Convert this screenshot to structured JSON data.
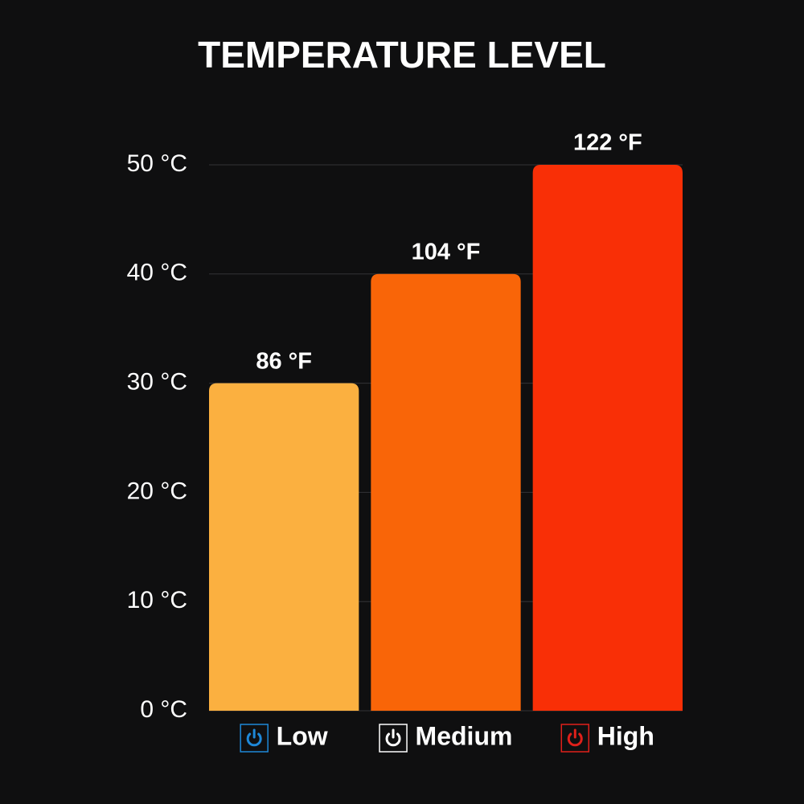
{
  "chart_data": {
    "type": "bar",
    "title": "TEMPERATURE LEVEL",
    "categories": [
      "Low",
      "Medium",
      "High"
    ],
    "values": [
      30,
      40,
      50
    ],
    "value_labels": [
      "86 °F",
      "104 °F",
      "122 °F"
    ],
    "colors": [
      "#fbb040",
      "#f96508",
      "#f92f06"
    ],
    "icon_colors": [
      "#1e88d8",
      "#ffffff",
      "#e0201a"
    ],
    "ylim": [
      0,
      50
    ],
    "yticks": [
      {
        "value": 0,
        "label": "0 °C"
      },
      {
        "value": 10,
        "label": "10 °C"
      },
      {
        "value": 20,
        "label": "20 °C"
      },
      {
        "value": 30,
        "label": "30 °C"
      },
      {
        "value": 40,
        "label": "40 °C"
      },
      {
        "value": 50,
        "label": "50 °C"
      }
    ],
    "grid": true
  }
}
